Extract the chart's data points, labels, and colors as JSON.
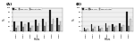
{
  "panel_A": {
    "title": "(A)",
    "years": [
      "1993",
      "1994",
      "1995",
      "1996",
      "1997",
      "1998",
      "1999"
    ],
    "series": {
      "ICU": [
        40,
        42,
        38,
        48,
        52,
        90,
        58
      ],
      "non_ICU": [
        12,
        18,
        15,
        20,
        22,
        28,
        25
      ],
      "Ward_total": [
        22,
        28,
        23,
        32,
        35,
        52,
        40
      ]
    },
    "colors": {
      "ICU": "#1a1a1a",
      "non_ICU": "#888888",
      "Ward_total": "#d8d8d8"
    },
    "ylim": [
      0,
      100
    ],
    "yticks": [
      0,
      20,
      40,
      60,
      80,
      100
    ],
    "ylabel": "%"
  },
  "panel_B": {
    "title": "(B)",
    "years": [
      "1993",
      "1994",
      "1995",
      "1996",
      "1997",
      "1998",
      "1999"
    ],
    "series": {
      "ICU": [
        12,
        28,
        22,
        32,
        28,
        32,
        85
      ],
      "non_ICU": [
        6,
        10,
        8,
        12,
        16,
        18,
        22
      ],
      "Ward_total": [
        9,
        18,
        15,
        20,
        20,
        24,
        52
      ]
    },
    "colors": {
      "ICU": "#1a1a1a",
      "non_ICU": "#888888",
      "Ward_total": "#d8d8d8"
    },
    "ylim": [
      0,
      100
    ],
    "yticks": [
      0,
      20,
      40,
      60,
      80,
      100
    ],
    "ylabel": "%"
  },
  "legend_labels": [
    "ICU",
    "non-ICU",
    "Ward total"
  ],
  "legend_colors": [
    "#1a1a1a",
    "#888888",
    "#d8d8d8"
  ],
  "xlabel": "Years",
  "background_color": "#f0f0f0",
  "bar_width": 0.22
}
